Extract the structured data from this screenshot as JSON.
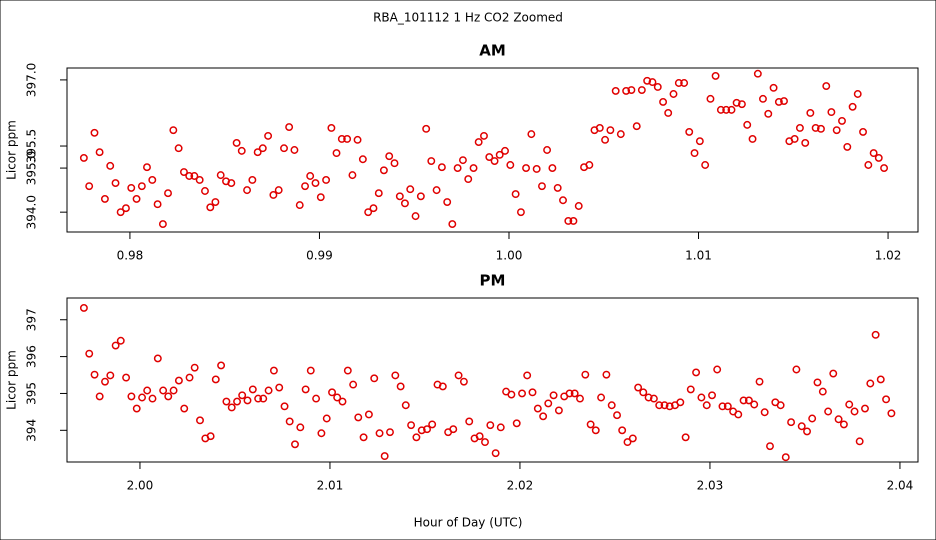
{
  "title": "RBA_101112  1 Hz CO2 Zoomed",
  "xlabel": "Hour of Day (UTC)",
  "chart_data": [
    {
      "type": "scatter",
      "title": "AM",
      "ylabel": "Licor ppm",
      "color": "#e00000",
      "xlim": [
        0.97668,
        1.02158
      ],
      "ylim": [
        393.55,
        397.27
      ],
      "xticks": [
        {
          "value": 0.98,
          "label": "0.98"
        },
        {
          "value": 0.99,
          "label": "0.99"
        },
        {
          "value": 1.0,
          "label": "1.00"
        },
        {
          "value": 1.01,
          "label": "1.01"
        },
        {
          "value": 1.02,
          "label": "1.02"
        }
      ],
      "yticks": [
        {
          "value": 394,
          "label": "394.0"
        },
        {
          "value": 395,
          "label": "395.0"
        },
        {
          "value": 395.5,
          "label": "395.5"
        },
        {
          "value": 397,
          "label": "397.0"
        }
      ],
      "x": [
        0.97757,
        0.97785,
        0.97813,
        0.9784,
        0.97868,
        0.97896,
        0.97924,
        0.97951,
        0.97979,
        0.98007,
        0.98035,
        0.98063,
        0.9809,
        0.98118,
        0.98146,
        0.98174,
        0.98201,
        0.98229,
        0.98257,
        0.98285,
        0.98313,
        0.9834,
        0.98368,
        0.98396,
        0.98424,
        0.98451,
        0.98479,
        0.98507,
        0.98535,
        0.98563,
        0.9859,
        0.98618,
        0.98646,
        0.98674,
        0.98701,
        0.98729,
        0.98757,
        0.98785,
        0.98813,
        0.9884,
        0.98868,
        0.98896,
        0.98924,
        0.98951,
        0.98979,
        0.99007,
        0.99035,
        0.99063,
        0.9909,
        0.99118,
        0.99146,
        0.99174,
        0.99201,
        0.99229,
        0.99257,
        0.99285,
        0.99313,
        0.9934,
        0.99368,
        0.99396,
        0.99424,
        0.99451,
        0.99479,
        0.99507,
        0.99535,
        0.99563,
        0.9959,
        0.99618,
        0.99646,
        0.99674,
        0.99701,
        0.99729,
        0.99757,
        0.99785,
        0.99813,
        0.9984,
        0.99868,
        0.99896,
        0.99924,
        0.99951,
        0.99979,
        1.00007,
        1.00035,
        1.00063,
        1.0009,
        1.00118,
        1.00146,
        1.00174,
        1.00201,
        1.00229,
        1.00257,
        1.00285,
        1.00313,
        1.0034,
        1.00368,
        1.00396,
        1.00424,
        1.00451,
        1.00479,
        1.00507,
        1.00535,
        1.00563,
        1.0059,
        1.00618,
        1.00646,
        1.00674,
        1.00701,
        1.00729,
        1.00757,
        1.00785,
        1.00813,
        1.0084,
        1.00868,
        1.00896,
        1.00924,
        1.00951,
        1.00979,
        1.01007,
        1.01035,
        1.01063,
        1.0109,
        1.01118,
        1.01146,
        1.01174,
        1.01201,
        1.01229,
        1.01257,
        1.01285,
        1.01313,
        1.0134,
        1.01368,
        1.01396,
        1.01424,
        1.01451,
        1.01479,
        1.01507,
        1.01535,
        1.01563,
        1.0159,
        1.01618,
        1.01646,
        1.01674,
        1.01701,
        1.01729,
        1.01757,
        1.01785,
        1.01813,
        1.0184,
        1.01868,
        1.01896,
        1.01924,
        1.01951,
        1.01979
      ],
      "values": [
        395.23,
        394.59,
        395.8,
        395.36,
        394.3,
        395.05,
        394.66,
        394.0,
        394.09,
        394.55,
        394.3,
        394.59,
        395.02,
        394.73,
        394.18,
        393.73,
        394.43,
        395.86,
        395.45,
        394.91,
        394.82,
        394.82,
        394.73,
        394.48,
        394.11,
        394.23,
        394.84,
        394.7,
        394.66,
        395.57,
        395.39,
        394.5,
        394.73,
        395.36,
        395.45,
        395.73,
        394.39,
        394.5,
        395.45,
        395.93,
        395.41,
        394.16,
        394.59,
        394.82,
        394.66,
        394.34,
        394.73,
        395.91,
        395.34,
        395.66,
        395.66,
        394.84,
        395.64,
        395.2,
        394.0,
        394.09,
        394.43,
        394.95,
        395.27,
        395.11,
        394.36,
        394.2,
        394.52,
        393.91,
        394.36,
        395.89,
        395.16,
        394.5,
        395.02,
        394.23,
        393.73,
        395.0,
        395.18,
        394.75,
        395.0,
        395.59,
        395.73,
        395.25,
        395.16,
        395.3,
        395.39,
        395.07,
        394.41,
        394.0,
        395.0,
        395.77,
        394.98,
        394.59,
        395.41,
        395.0,
        394.55,
        394.27,
        393.8,
        393.8,
        394.14,
        395.02,
        395.07,
        395.86,
        395.91,
        395.64,
        395.86,
        396.75,
        395.77,
        396.75,
        396.77,
        395.95,
        396.77,
        396.98,
        396.95,
        396.84,
        396.5,
        396.25,
        396.68,
        396.93,
        396.93,
        395.82,
        395.34,
        395.61,
        395.07,
        396.57,
        397.09,
        396.32,
        396.32,
        396.32,
        396.48,
        396.45,
        395.98,
        395.66,
        397.14,
        396.57,
        396.23,
        396.82,
        396.5,
        396.52,
        395.61,
        395.66,
        395.91,
        395.57,
        396.25,
        395.91,
        395.89,
        396.86,
        396.27,
        395.86,
        396.07,
        395.48,
        396.39,
        396.68,
        395.82,
        395.07,
        395.34,
        395.23,
        395.0
      ]
    },
    {
      "type": "scatter",
      "title": "PM",
      "ylabel": "Licor ppm",
      "color": "#e00000",
      "xlim": [
        1.99616,
        2.04095
      ],
      "ylim": [
        393.14,
        397.59
      ],
      "xticks": [
        {
          "value": 2.0,
          "label": "2.00"
        },
        {
          "value": 2.01,
          "label": "2.01"
        },
        {
          "value": 2.02,
          "label": "2.02"
        },
        {
          "value": 2.03,
          "label": "2.03"
        },
        {
          "value": 2.04,
          "label": "2.04"
        }
      ],
      "yticks": [
        394,
        395,
        396,
        397
      ],
      "x": [
        1.99705,
        1.99733,
        1.99761,
        1.99788,
        1.99816,
        1.99844,
        1.99872,
        1.99899,
        1.99927,
        1.99955,
        1.99983,
        2.00011,
        2.00038,
        2.00066,
        2.00094,
        2.00122,
        2.00149,
        2.00177,
        2.00205,
        2.00233,
        2.00261,
        2.00288,
        2.00316,
        2.00344,
        2.00372,
        2.00399,
        2.00427,
        2.00455,
        2.00483,
        2.00511,
        2.00538,
        2.00566,
        2.00594,
        2.00622,
        2.00649,
        2.00677,
        2.00705,
        2.00733,
        2.00761,
        2.00788,
        2.00816,
        2.00844,
        2.00872,
        2.00899,
        2.00927,
        2.00955,
        2.00983,
        2.01011,
        2.01038,
        2.01066,
        2.01094,
        2.01122,
        2.01149,
        2.01177,
        2.01205,
        2.01233,
        2.01261,
        2.01288,
        2.01316,
        2.01344,
        2.01372,
        2.01399,
        2.01427,
        2.01455,
        2.01483,
        2.01511,
        2.01538,
        2.01566,
        2.01594,
        2.01622,
        2.01649,
        2.01677,
        2.01705,
        2.01733,
        2.01761,
        2.01788,
        2.01816,
        2.01844,
        2.01872,
        2.01899,
        2.01927,
        2.01955,
        2.01983,
        2.02011,
        2.02038,
        2.02066,
        2.02094,
        2.02122,
        2.02149,
        2.02177,
        2.02205,
        2.02233,
        2.02261,
        2.02288,
        2.02316,
        2.02344,
        2.02372,
        2.02399,
        2.02427,
        2.02455,
        2.02483,
        2.02511,
        2.02538,
        2.02566,
        2.02594,
        2.02622,
        2.02649,
        2.02677,
        2.02705,
        2.02733,
        2.02761,
        2.02788,
        2.02816,
        2.02844,
        2.02872,
        2.02899,
        2.02927,
        2.02955,
        2.02983,
        2.03011,
        2.03038,
        2.03066,
        2.03094,
        2.03122,
        2.03149,
        2.03177,
        2.03205,
        2.03233,
        2.03261,
        2.03288,
        2.03316,
        2.03344,
        2.03372,
        2.03399,
        2.03427,
        2.03455,
        2.03483,
        2.03511,
        2.03538,
        2.03566,
        2.03594,
        2.03622,
        2.03649,
        2.03677,
        2.03705,
        2.03733,
        2.03761,
        2.03788,
        2.03816,
        2.03844,
        2.03872,
        2.03899,
        2.03927,
        2.03955
      ],
      "values": [
        397.32,
        396.08,
        395.51,
        394.92,
        395.32,
        395.49,
        396.3,
        396.43,
        395.43,
        394.92,
        394.59,
        394.89,
        395.08,
        394.86,
        395.95,
        395.08,
        394.92,
        395.08,
        395.35,
        394.59,
        395.43,
        395.7,
        394.27,
        393.78,
        393.84,
        395.38,
        395.76,
        394.78,
        394.62,
        394.78,
        394.95,
        394.81,
        395.11,
        394.86,
        394.86,
        395.08,
        395.62,
        395.16,
        394.65,
        394.24,
        393.62,
        394.08,
        395.11,
        395.62,
        394.86,
        393.92,
        394.32,
        395.03,
        394.89,
        394.78,
        395.62,
        395.24,
        394.35,
        393.81,
        394.43,
        395.41,
        393.92,
        393.3,
        393.95,
        395.49,
        395.19,
        394.68,
        394.14,
        393.81,
        394.0,
        394.03,
        394.16,
        395.24,
        395.19,
        393.95,
        394.03,
        395.49,
        395.32,
        394.24,
        393.78,
        393.84,
        393.68,
        394.14,
        393.38,
        394.08,
        395.05,
        394.97,
        394.19,
        395.0,
        395.49,
        395.03,
        394.59,
        394.38,
        394.73,
        394.95,
        394.54,
        394.92,
        395.0,
        395.0,
        394.86,
        395.51,
        394.16,
        394.0,
        394.89,
        395.51,
        394.68,
        394.41,
        394.0,
        393.68,
        393.78,
        395.16,
        395.03,
        394.89,
        394.86,
        394.68,
        394.68,
        394.65,
        394.68,
        394.76,
        393.81,
        395.11,
        395.57,
        394.89,
        394.68,
        394.95,
        395.65,
        394.65,
        394.65,
        394.51,
        394.43,
        394.81,
        394.81,
        394.7,
        395.32,
        394.49,
        393.57,
        394.76,
        394.68,
        393.27,
        394.22,
        395.65,
        394.11,
        393.97,
        394.32,
        395.3,
        395.05,
        394.51,
        395.54,
        394.3,
        394.16,
        394.7,
        394.51,
        393.7,
        394.59,
        395.27,
        396.59,
        395.38,
        394.84,
        394.46
      ]
    }
  ]
}
